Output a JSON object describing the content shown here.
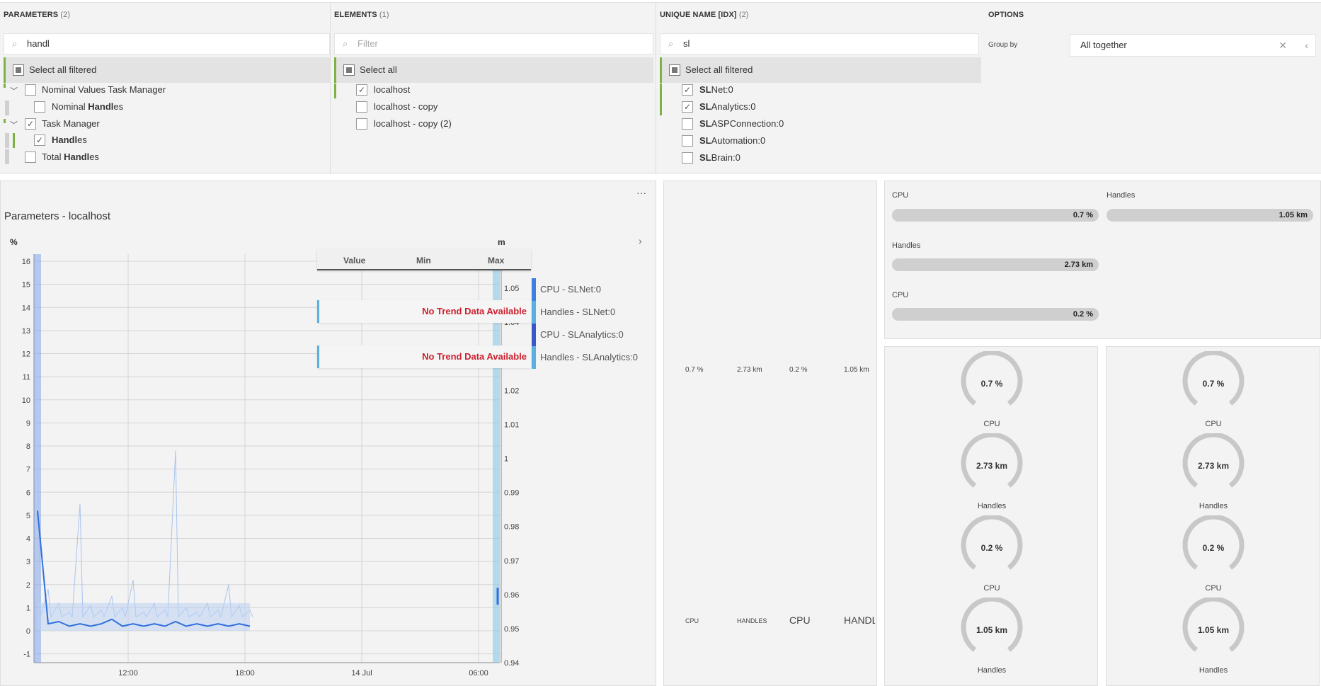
{
  "filters": {
    "parameters": {
      "title": "PARAMETERS",
      "count": "(2)",
      "search_value": "handl",
      "select_all_label": "Select all filtered",
      "items": [
        {
          "prefix": "Nominal Values Task Manager",
          "bold": "",
          "suffix": ""
        },
        {
          "prefix": "Nominal ",
          "bold": "Handl",
          "suffix": "es"
        },
        {
          "prefix": "Task Manager",
          "bold": "",
          "suffix": ""
        },
        {
          "prefix": "",
          "bold": "Handl",
          "suffix": "es"
        },
        {
          "prefix": "Total ",
          "bold": "Handl",
          "suffix": "es"
        }
      ]
    },
    "elements": {
      "title": "ELEMENTS",
      "count": "(1)",
      "search_placeholder": "Filter",
      "select_all_label": "Select all",
      "items": [
        "localhost",
        "localhost - copy",
        "localhost - copy (2)"
      ]
    },
    "unique_name": {
      "title": "UNIQUE NAME [IDX]",
      "count": "(2)",
      "search_value": "sl",
      "select_all_label": "Select all filtered",
      "items": [
        {
          "bold": "SL",
          "suffix": "Net:0"
        },
        {
          "bold": "SL",
          "suffix": "Analytics:0"
        },
        {
          "bold": "SL",
          "suffix": "ASPConnection:0"
        },
        {
          "bold": "SL",
          "suffix": "Automation:0"
        },
        {
          "bold": "SL",
          "suffix": "Brain:0"
        }
      ]
    },
    "options": {
      "title": "OPTIONS",
      "group_by_label": "Group by",
      "group_by_value": "All together"
    }
  },
  "chart": {
    "title": "Parameters - localhost",
    "unit_left": "%",
    "unit_right": "m",
    "tooltip_columns": [
      "Value",
      "Min",
      "Max"
    ],
    "no_trend": "No Trend Data Available",
    "legend": [
      "CPU - SLNet:0",
      "Handles - SLNet:0",
      "CPU - SLAnalytics:0",
      "Handles - SLAnalytics:0"
    ],
    "legend_colors": [
      "#3f7fe0",
      "#5ab0e0",
      "#3a56c8",
      "#5ab0e0"
    ]
  },
  "chart_data": {
    "type": "line",
    "y_left_ticks": [
      "16",
      "15",
      "14",
      "13",
      "12",
      "11",
      "10",
      "9",
      "8",
      "7",
      "6",
      "5",
      "4",
      "3",
      "2",
      "1",
      "0",
      "-1"
    ],
    "y_right_ticks": [
      "1.06",
      "1.05",
      "1.04",
      "1.03",
      "1.02",
      "1.01",
      "1",
      "0.99",
      "0.98",
      "0.97",
      "0.96",
      "0.95",
      "0.94"
    ],
    "x_ticks": [
      "12:00",
      "18:00",
      "14 Jul",
      "06:00"
    ],
    "ylim_left": [
      -1,
      16
    ],
    "ylim_right": [
      0.94,
      1.06
    ],
    "series": [
      {
        "values": [
          5.2,
          0.3,
          0.4,
          0.2,
          0.3,
          0.2,
          0.3,
          0.5,
          0.2,
          0.3,
          0.2,
          0.3,
          0.2,
          0.4,
          0.2,
          0.3,
          0.2,
          0.3,
          0.2,
          0.3,
          0.2
        ]
      },
      {
        "values": [
          7.5,
          1.8,
          1.2,
          0.8,
          5.5,
          1.1,
          0.9,
          1.5,
          1.0,
          2.2,
          0.8,
          1.2,
          0.9,
          7.8,
          1.0,
          0.8,
          1.2,
          0.9,
          2.0,
          1.1,
          0.9
        ]
      }
    ]
  },
  "kpi": {
    "values": [
      "0.7 %",
      "2.73 km",
      "0.2 %",
      "1.05 km"
    ],
    "labels": [
      "CPU",
      "HANDLES",
      "CPU",
      "HANDL"
    ]
  },
  "bars": [
    {
      "label": "CPU",
      "value": "0.7 %"
    },
    {
      "label": "Handles",
      "value": "1.05 km"
    },
    {
      "label": "Handles",
      "value": "2.73 km"
    },
    {
      "label": "CPU",
      "value": "0.2 %"
    }
  ],
  "gauges_left": [
    {
      "value": "0.7 %",
      "label": "CPU"
    },
    {
      "value": "2.73 km",
      "label": "Handles"
    },
    {
      "value": "0.2 %",
      "label": "CPU"
    },
    {
      "value": "1.05 km",
      "label": "Handles"
    }
  ],
  "gauges_right": [
    {
      "value": "0.7 %",
      "label": "CPU"
    },
    {
      "value": "2.73 km",
      "label": "Handles"
    },
    {
      "value": "0.2 %",
      "label": "CPU"
    },
    {
      "value": "1.05 km",
      "label": "Handles"
    }
  ]
}
